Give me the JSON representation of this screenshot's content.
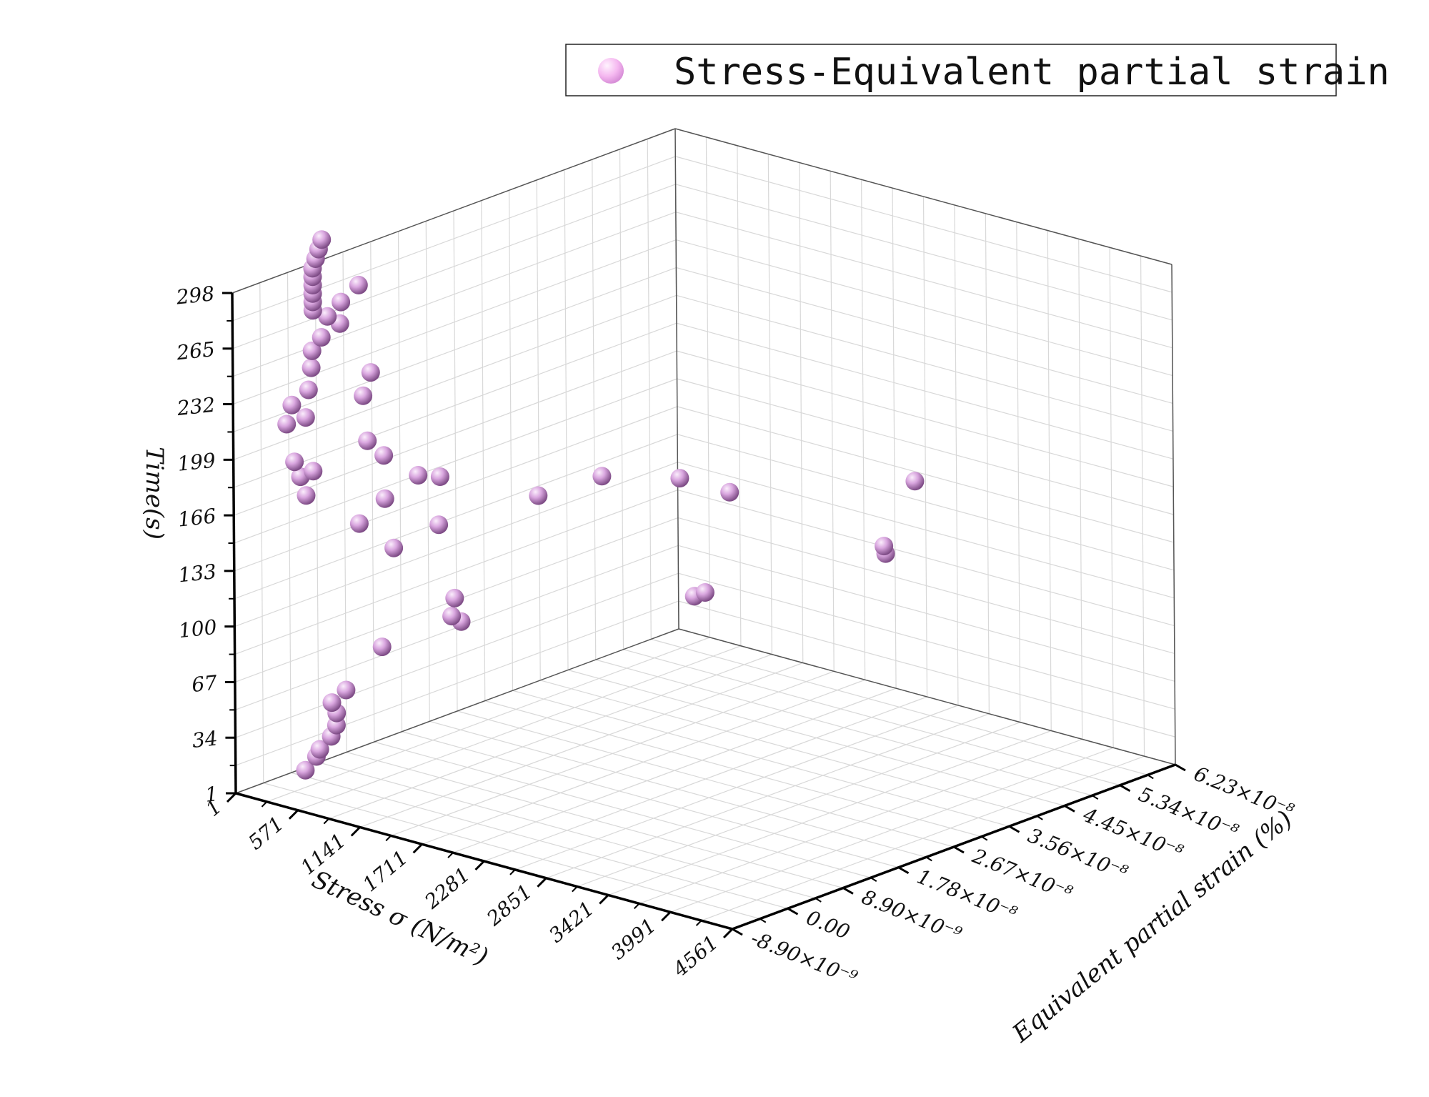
{
  "chart_data": {
    "type": "scatter3d",
    "legend": {
      "label": "Stress-Equivalent partial strain",
      "placement": "top-right",
      "marker_color": "#f5b8f0"
    },
    "axes": {
      "x": {
        "label": "Stress σ (N/m²)",
        "ticks": [
          "1",
          "571",
          "1141",
          "1711",
          "2281",
          "2851",
          "3421",
          "3991",
          "4561"
        ],
        "range": [
          1,
          4561
        ]
      },
      "y": {
        "label": "Equivalent partial strain (%)",
        "ticks": [
          "-8.90×10⁻⁹",
          "0.00",
          "8.90×10⁻⁹",
          "1.78×10⁻⁸",
          "2.67×10⁻⁸",
          "3.56×10⁻⁸",
          "4.45×10⁻⁸",
          "5.34×10⁻⁸",
          "6.23×10⁻⁸"
        ],
        "range": [
          -8.9e-09,
          6.23e-08
        ]
      },
      "z": {
        "label": "Time(s)",
        "ticks": [
          "1",
          "34",
          "67",
          "100",
          "133",
          "166",
          "199",
          "232",
          "265",
          "298"
        ],
        "range": [
          1,
          298
        ]
      }
    },
    "grid": true,
    "marker_color": "#d9a6df",
    "points": [
      {
        "x": 40,
        "y": 1.6e-09,
        "z": 1
      },
      {
        "x": 120,
        "y": 2e-09,
        "z": 10
      },
      {
        "x": 180,
        "y": 1.5e-09,
        "z": 16
      },
      {
        "x": 200,
        "y": 3e-09,
        "z": 22
      },
      {
        "x": 260,
        "y": 2.8e-09,
        "z": 30
      },
      {
        "x": 280,
        "y": 2.5e-09,
        "z": 38
      },
      {
        "x": 300,
        "y": 1.4e-09,
        "z": 46
      },
      {
        "x": 340,
        "y": 3e-09,
        "z": 52
      },
      {
        "x": 300,
        "y": 9.5e-09,
        "z": 68
      },
      {
        "x": 600,
        "y": 1.7e-08,
        "z": 78
      },
      {
        "x": 2000,
        "y": 3e-08,
        "z": 100
      },
      {
        "x": 2100,
        "y": 3e-08,
        "z": 104
      },
      {
        "x": 2500,
        "y": 5.2e-08,
        "z": 104
      },
      {
        "x": 2600,
        "y": 5e-08,
        "z": 113
      },
      {
        "x": 2200,
        "y": 6.2e-08,
        "z": 128
      },
      {
        "x": 1000,
        "y": 8.5e-09,
        "z": 100
      },
      {
        "x": 1000,
        "y": 9e-09,
        "z": 110
      },
      {
        "x": 300,
        "y": 1.15e-08,
        "z": 124
      },
      {
        "x": 400,
        "y": 1.7e-08,
        "z": 132
      },
      {
        "x": 800,
        "y": 2.6e-08,
        "z": 144
      },
      {
        "x": 1300,
        "y": 4e-08,
        "z": 144
      },
      {
        "x": 1500,
        "y": 4.45e-08,
        "z": 133
      },
      {
        "x": 300,
        "y": 6e-09,
        "z": 146
      },
      {
        "x": 250,
        "y": 1.1e-08,
        "z": 153
      },
      {
        "x": 300,
        "y": 1.9e-08,
        "z": 156
      },
      {
        "x": 1100,
        "y": 3.1e-08,
        "z": 154
      },
      {
        "x": 100,
        "y": 1e-09,
        "z": 166
      },
      {
        "x": 20,
        "y": 1.5e-09,
        "z": 175
      },
      {
        "x": 40,
        "y": 2e-10,
        "z": 186
      },
      {
        "x": 80,
        "y": 2.5e-09,
        "z": 178
      },
      {
        "x": 500,
        "y": 1.2e-08,
        "z": 170
      },
      {
        "x": 300,
        "y": 1e-08,
        "z": 181
      },
      {
        "x": 150,
        "y": 1e-08,
        "z": 187
      },
      {
        "x": 40,
        "y": -1e-09,
        "z": 210
      },
      {
        "x": 20,
        "y": 2.4e-09,
        "z": 209
      },
      {
        "x": 60,
        "y": -5e-10,
        "z": 221
      },
      {
        "x": 100,
        "y": 1.5e-09,
        "z": 228
      },
      {
        "x": 400,
        "y": 5e-09,
        "z": 225
      },
      {
        "x": 300,
        "y": 8e-09,
        "z": 233
      },
      {
        "x": 40,
        "y": 3e-09,
        "z": 238
      },
      {
        "x": 20,
        "y": 3.5e-09,
        "z": 247
      },
      {
        "x": 20,
        "y": 5e-09,
        "z": 253
      },
      {
        "x": 20,
        "y": 8e-09,
        "z": 257
      },
      {
        "x": 20,
        "y": 6e-09,
        "z": 264
      },
      {
        "x": 30,
        "y": 8e-09,
        "z": 270
      },
      {
        "x": 50,
        "y": 1.05e-08,
        "z": 277
      },
      {
        "x": 1,
        "y": 4e-09,
        "z": 270
      },
      {
        "x": 1,
        "y": 4e-09,
        "z": 275
      },
      {
        "x": 1,
        "y": 4e-09,
        "z": 280
      },
      {
        "x": 1,
        "y": 4e-09,
        "z": 285
      },
      {
        "x": 1,
        "y": 4e-09,
        "z": 290
      },
      {
        "x": 1,
        "y": 4e-09,
        "z": 295
      },
      {
        "x": 1,
        "y": 4.5e-09,
        "z": 300
      },
      {
        "x": 1,
        "y": 5e-09,
        "z": 305
      },
      {
        "x": 1,
        "y": 5.5e-09,
        "z": 310
      }
    ]
  }
}
